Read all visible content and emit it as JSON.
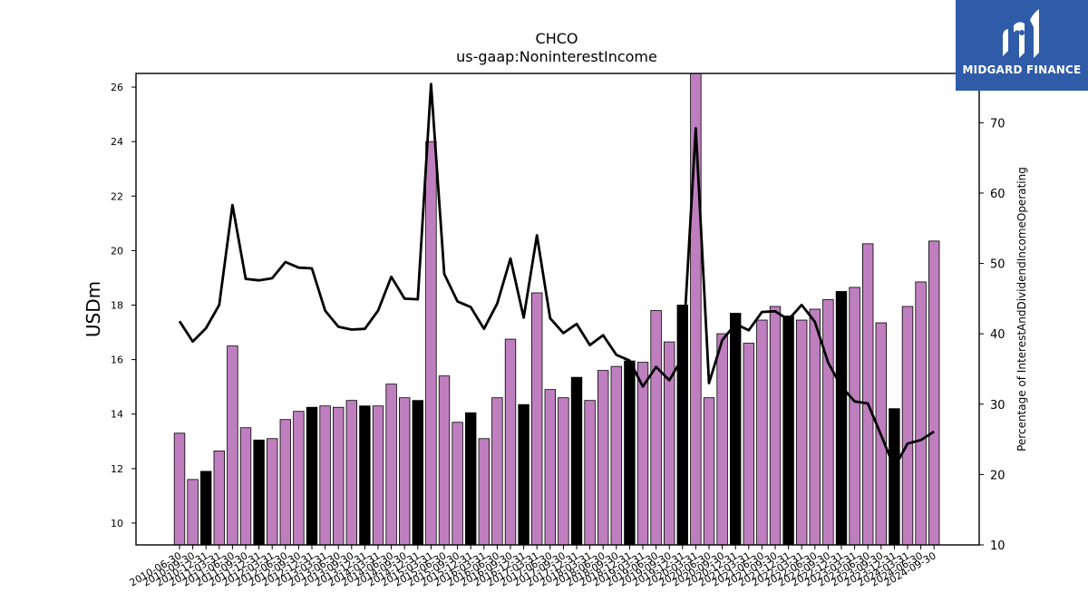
{
  "chart_data": {
    "type": "bar",
    "title": "CHCO",
    "subtitle": "us-gaap:NoninterestIncome",
    "ylabel": "USDm",
    "y2label": "Percentage of InterestAndDividendIncomeOperating",
    "ylim": [
      9.2,
      26.5
    ],
    "y2lim": [
      10,
      77
    ],
    "yticks": [
      10,
      12,
      14,
      16,
      18,
      20,
      22,
      24,
      26
    ],
    "y2ticks": [
      10,
      20,
      30,
      40,
      50,
      60,
      70
    ],
    "categories": [
      "2010-06-30",
      "2010-09-30",
      "2010-12-31",
      "2011-03-31",
      "2011-06-30",
      "2011-09-30",
      "2011-12-31",
      "2012-03-31",
      "2012-06-30",
      "2012-09-30",
      "2012-12-31",
      "2013-03-31",
      "2013-06-30",
      "2013-09-30",
      "2013-12-31",
      "2014-03-31",
      "2014-06-30",
      "2014-09-30",
      "2014-12-31",
      "2015-03-31",
      "2015-06-30",
      "2015-09-30",
      "2015-12-31",
      "2016-03-31",
      "2016-06-30",
      "2016-09-30",
      "2016-12-31",
      "2017-03-31",
      "2017-06-30",
      "2017-09-30",
      "2017-12-31",
      "2018-03-31",
      "2018-06-30",
      "2018-09-30",
      "2018-12-31",
      "2019-03-31",
      "2019-06-30",
      "2019-09-30",
      "2019-12-31",
      "2020-03-31",
      "2020-06-30",
      "2020-09-30",
      "2020-12-31",
      "2021-03-31",
      "2021-06-30",
      "2021-09-30",
      "2021-12-31",
      "2022-03-31",
      "2022-06-30",
      "2022-09-30",
      "2022-12-31",
      "2023-03-31",
      "2023-06-30",
      "2023-09-30",
      "2023-12-31",
      "2024-03-31",
      "2024-06-30",
      "2024-09-30"
    ],
    "bar_values": [
      13.3,
      11.6,
      11.9,
      12.65,
      16.5,
      13.5,
      13.05,
      13.1,
      13.8,
      14.1,
      14.25,
      14.3,
      14.25,
      14.5,
      14.3,
      14.3,
      15.1,
      14.6,
      14.5,
      24.0,
      15.4,
      13.7,
      14.05,
      13.1,
      14.6,
      16.75,
      14.35,
      18.45,
      14.9,
      14.6,
      15.35,
      14.5,
      15.6,
      15.75,
      15.95,
      15.9,
      17.8,
      16.65,
      18.0,
      26.5,
      14.6,
      16.95,
      17.7,
      16.6,
      17.45,
      17.95,
      17.6,
      17.45,
      17.85,
      18.2,
      18.5,
      18.65,
      20.25,
      17.35,
      14.2,
      17.95,
      18.85,
      20.35
    ],
    "bar_highlight": [
      false,
      false,
      true,
      false,
      false,
      false,
      true,
      false,
      false,
      false,
      true,
      false,
      false,
      false,
      true,
      false,
      false,
      false,
      true,
      false,
      false,
      false,
      true,
      false,
      false,
      false,
      true,
      false,
      false,
      false,
      true,
      false,
      false,
      false,
      true,
      false,
      false,
      false,
      true,
      false,
      false,
      false,
      true,
      false,
      false,
      false,
      true,
      false,
      false,
      false,
      true,
      false,
      false,
      false,
      true,
      false,
      false,
      false
    ],
    "line_values": [
      41.8,
      38.9,
      40.8,
      44.1,
      58.3,
      47.8,
      47.6,
      47.9,
      50.2,
      49.4,
      49.3,
      43.3,
      41.0,
      40.6,
      40.7,
      43.3,
      48.1,
      45.0,
      44.9,
      75.5,
      48.5,
      44.6,
      43.8,
      40.7,
      44.3,
      50.7,
      42.3,
      54.0,
      42.2,
      40.1,
      41.4,
      38.4,
      39.8,
      37.0,
      36.2,
      32.5,
      35.3,
      33.4,
      36.6,
      69.2,
      33.0,
      39.1,
      41.4,
      40.5,
      43.1,
      43.2,
      42.0,
      44.1,
      41.7,
      35.9,
      32.5,
      30.4,
      30.1,
      25.6,
      21.0,
      24.4,
      24.9,
      26.1
    ],
    "colors": {
      "bar": "#bf7fbf",
      "bar_highlight": "#000000",
      "line": "#000000"
    },
    "grid": false,
    "legend": "none"
  },
  "logo": {
    "text": "MIDGARD FINANCE"
  }
}
